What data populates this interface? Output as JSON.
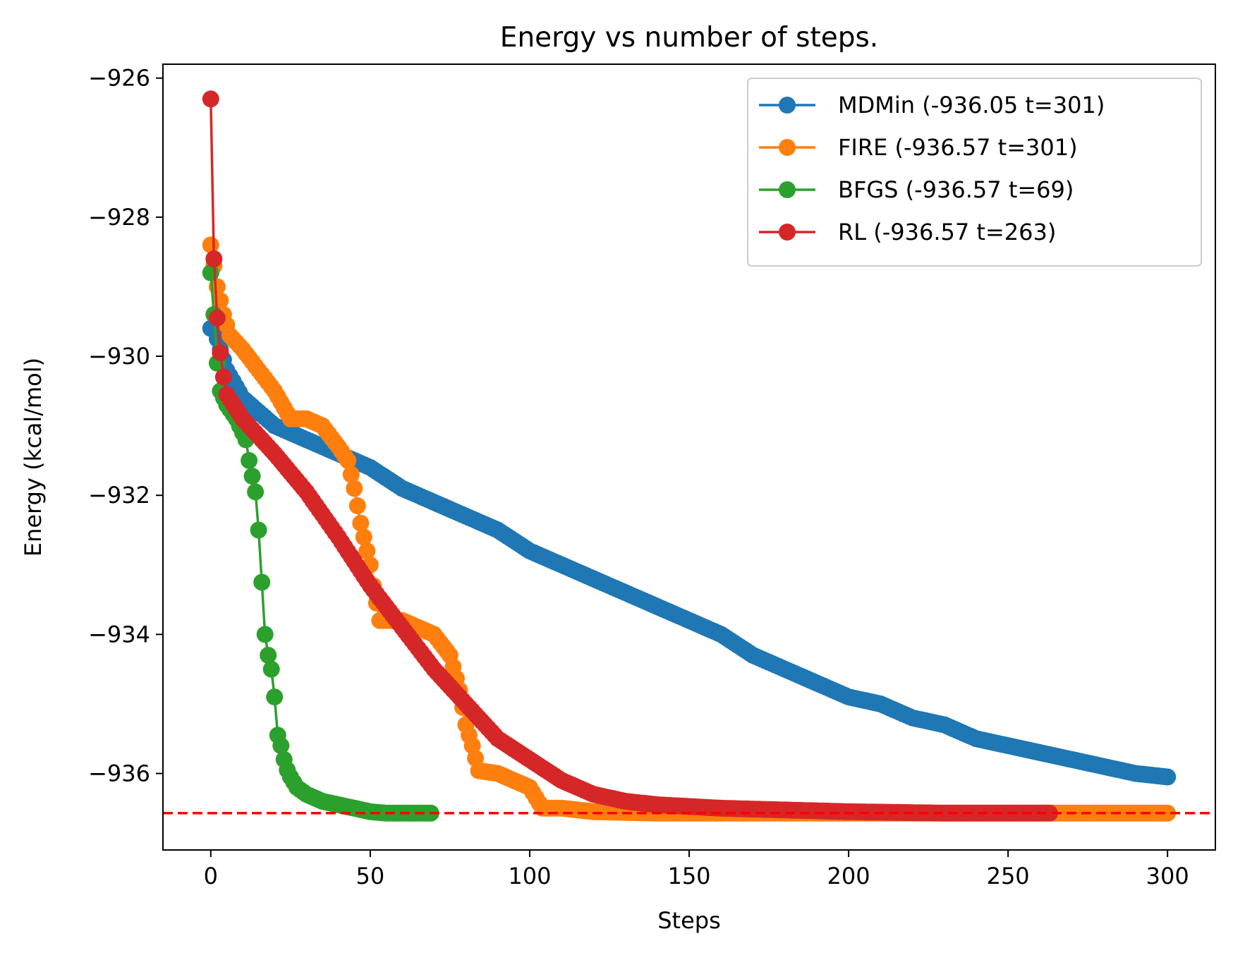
{
  "chart_data": {
    "type": "line",
    "title": "Energy vs number of steps.",
    "xlabel": "Steps",
    "ylabel": "Energy (kcal/mol)",
    "xlim": [
      -15,
      315
    ],
    "ylim": [
      -937.1,
      -925.8
    ],
    "xticks": [
      0,
      50,
      100,
      150,
      200,
      250,
      300
    ],
    "xtick_labels": [
      "0",
      "50",
      "100",
      "150",
      "200",
      "250",
      "300"
    ],
    "yticks": [
      -926,
      -928,
      -930,
      -932,
      -934,
      -936
    ],
    "ytick_labels": [
      "−926",
      "−928",
      "−930",
      "−932",
      "−934",
      "−936"
    ],
    "grid": false,
    "legend_position": "top-right",
    "reference_line": {
      "y": -936.57,
      "style": "dashed",
      "color": "#ff0000"
    },
    "series": [
      {
        "name": "MDMin (-936.05 t=301)",
        "color": "#1f77b4",
        "points": [
          [
            0,
            -929.6
          ],
          [
            1,
            -929.6
          ],
          [
            5,
            -930.2
          ],
          [
            10,
            -930.6
          ],
          [
            20,
            -931.0
          ],
          [
            30,
            -931.2
          ],
          [
            40,
            -931.4
          ],
          [
            50,
            -931.6
          ],
          [
            60,
            -931.9
          ],
          [
            70,
            -932.1
          ],
          [
            80,
            -932.3
          ],
          [
            90,
            -932.5
          ],
          [
            100,
            -932.8
          ],
          [
            110,
            -933.0
          ],
          [
            120,
            -933.2
          ],
          [
            130,
            -933.4
          ],
          [
            140,
            -933.6
          ],
          [
            150,
            -933.8
          ],
          [
            160,
            -934.0
          ],
          [
            170,
            -934.3
          ],
          [
            180,
            -934.5
          ],
          [
            190,
            -934.7
          ],
          [
            200,
            -934.9
          ],
          [
            210,
            -935.0
          ],
          [
            220,
            -935.2
          ],
          [
            230,
            -935.3
          ],
          [
            240,
            -935.5
          ],
          [
            250,
            -935.6
          ],
          [
            260,
            -935.7
          ],
          [
            270,
            -935.8
          ],
          [
            280,
            -935.9
          ],
          [
            290,
            -936.0
          ],
          [
            300,
            -936.05
          ]
        ]
      },
      {
        "name": "FIRE (-936.57 t=301)",
        "color": "#ff7f0e",
        "points": [
          [
            0,
            -928.4
          ],
          [
            1,
            -928.7
          ],
          [
            2,
            -929.0
          ],
          [
            4,
            -929.4
          ],
          [
            6,
            -929.7
          ],
          [
            10,
            -929.9
          ],
          [
            15,
            -930.2
          ],
          [
            20,
            -930.5
          ],
          [
            25,
            -930.9
          ],
          [
            30,
            -930.9
          ],
          [
            35,
            -931.0
          ],
          [
            40,
            -931.3
          ],
          [
            43,
            -931.5
          ],
          [
            45,
            -931.9
          ],
          [
            47,
            -932.4
          ],
          [
            49,
            -932.8
          ],
          [
            50,
            -933.0
          ],
          [
            51,
            -933.3
          ],
          [
            53,
            -933.8
          ],
          [
            60,
            -933.8
          ],
          [
            70,
            -934.0
          ],
          [
            75,
            -934.3
          ],
          [
            78,
            -934.8
          ],
          [
            80,
            -935.3
          ],
          [
            82,
            -935.6
          ],
          [
            84,
            -935.96
          ],
          [
            90,
            -936.0
          ],
          [
            95,
            -936.1
          ],
          [
            100,
            -936.2
          ],
          [
            104,
            -936.5
          ],
          [
            110,
            -936.5
          ],
          [
            120,
            -936.55
          ],
          [
            140,
            -936.57
          ],
          [
            200,
            -936.57
          ],
          [
            250,
            -936.57
          ],
          [
            300,
            -936.57
          ]
        ]
      },
      {
        "name": "BFGS (-936.57 t=69)",
        "color": "#2ca02c",
        "points": [
          [
            0,
            -928.8
          ],
          [
            1,
            -929.4
          ],
          [
            2,
            -930.1
          ],
          [
            3,
            -930.5
          ],
          [
            5,
            -930.7
          ],
          [
            8,
            -930.9
          ],
          [
            11,
            -931.2
          ],
          [
            12,
            -931.5
          ],
          [
            14,
            -931.95
          ],
          [
            15,
            -932.5
          ],
          [
            16,
            -933.25
          ],
          [
            17,
            -934.0
          ],
          [
            18,
            -934.3
          ],
          [
            19,
            -934.5
          ],
          [
            20,
            -934.9
          ],
          [
            21,
            -935.45
          ],
          [
            22,
            -935.6
          ],
          [
            23,
            -935.8
          ],
          [
            24,
            -935.95
          ],
          [
            25,
            -936.05
          ],
          [
            27,
            -936.2
          ],
          [
            30,
            -936.3
          ],
          [
            35,
            -936.4
          ],
          [
            40,
            -936.45
          ],
          [
            45,
            -936.5
          ],
          [
            50,
            -936.55
          ],
          [
            55,
            -936.57
          ],
          [
            60,
            -936.57
          ],
          [
            69,
            -936.57
          ]
        ]
      },
      {
        "name": "RL (-936.57 t=263)",
        "color": "#d62728",
        "points": [
          [
            0,
            -926.3
          ],
          [
            1,
            -928.6
          ],
          [
            2,
            -929.45
          ],
          [
            3,
            -929.95
          ],
          [
            4,
            -930.3
          ],
          [
            5,
            -930.55
          ],
          [
            10,
            -930.9
          ],
          [
            20,
            -931.4
          ],
          [
            30,
            -931.95
          ],
          [
            40,
            -932.6
          ],
          [
            50,
            -933.3
          ],
          [
            60,
            -933.9
          ],
          [
            70,
            -934.5
          ],
          [
            80,
            -935.0
          ],
          [
            90,
            -935.5
          ],
          [
            100,
            -935.8
          ],
          [
            110,
            -936.1
          ],
          [
            120,
            -936.3
          ],
          [
            130,
            -936.4
          ],
          [
            140,
            -936.45
          ],
          [
            160,
            -936.5
          ],
          [
            200,
            -936.55
          ],
          [
            230,
            -936.57
          ],
          [
            263,
            -936.57
          ]
        ]
      }
    ]
  }
}
